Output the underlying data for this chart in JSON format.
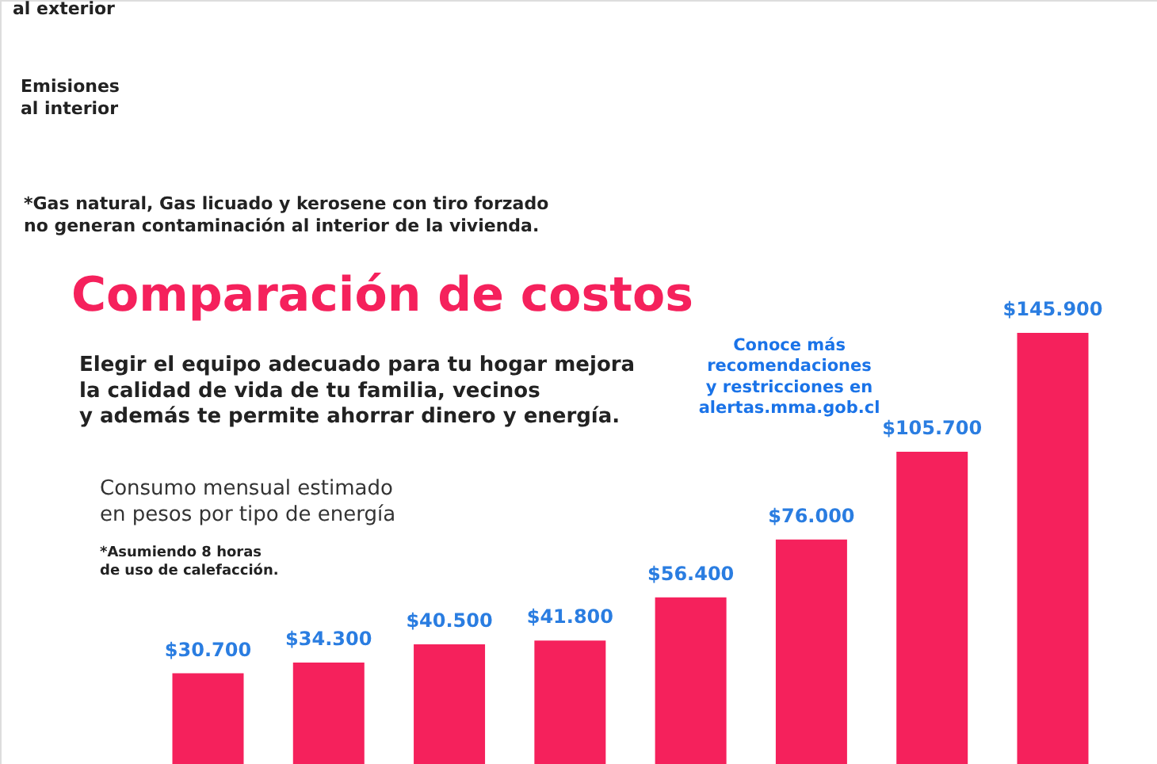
{
  "chart_data": {
    "type": "bar",
    "title": "Comparación de costos",
    "subtitle": "Elegir el equipo adecuado para tu hogar mejora\nla calidad de vida de tu familia, vecinos\ny además te permite ahorrar dinero y energía.",
    "categories": [
      null,
      null,
      null,
      null,
      null,
      null,
      null,
      null
    ],
    "values": [
      30700,
      34300,
      40500,
      41800,
      56400,
      76000,
      105700,
      145900
    ],
    "value_labels": [
      "$30.700",
      "$34.300",
      "$40.500",
      "$41.800",
      "$56.400",
      "$76.000",
      "$105.700",
      "$145.900"
    ],
    "color": "#f5215c",
    "annotations": [
      "al exterior",
      "Emisiones\nal interior",
      "*Gas natural, Gas licuado y kerosene con tiro forzado\n  no generan contaminación al interior de la vivienda.",
      "Consumo mensual estimado\nen pesos por tipo de energía",
      "*Asumiendo 8 horas\n de uso de calefacción.",
      "Conoce más\nrecomendaciones\ny restricciones en\nalertas.mma.gob.cl"
    ]
  }
}
